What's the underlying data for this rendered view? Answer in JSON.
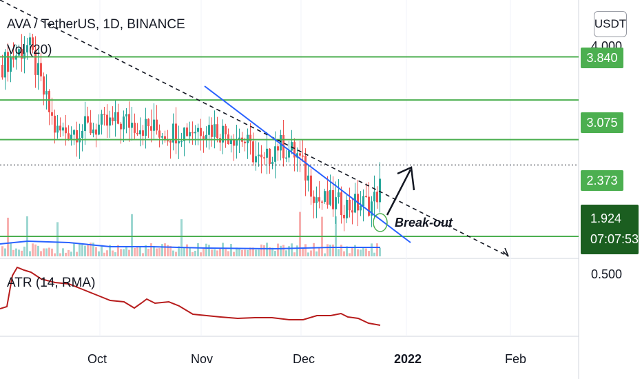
{
  "header": {
    "title": "AVA / TetherUS, 1D, BINANCE",
    "volume_label": "Vol (20)",
    "atr_label": "ATR (14, RMA)"
  },
  "toolbar": {
    "currency_button": "USDT"
  },
  "price_axis": {
    "top_partial_label": "4.000",
    "lower_label": "0.500"
  },
  "levels": [
    {
      "label": "3.840",
      "value": 3.84
    },
    {
      "label": "3.075",
      "value": 3.075
    },
    {
      "label": "2.373",
      "value": 2.373
    },
    {
      "label": "1.924",
      "value": 1.924
    }
  ],
  "current_price": {
    "price": "1.924",
    "countdown": "07:07:53"
  },
  "annotation": {
    "text": "Break-out"
  },
  "time_axis": [
    {
      "label": "Oct",
      "bold": false
    },
    {
      "label": "Nov",
      "bold": false
    },
    {
      "label": "Dec",
      "bold": false
    },
    {
      "label": "2022",
      "bold": true
    },
    {
      "label": "Feb",
      "bold": false
    }
  ],
  "colors": {
    "up": "#26a69a",
    "down": "#ef5350",
    "level_line": "#4caf50",
    "trend_line": "#2962ff",
    "dashed_line": "#131722",
    "atr_line": "#b71c1c",
    "vol_ma": "#2962ff",
    "price_badge": "#1b5e20"
  },
  "chart_data": {
    "type": "candlestick",
    "title": "AVA / TetherUS, 1D, BINANCE",
    "x": [
      "Oct",
      "Nov",
      "Dec",
      "2022",
      "Feb"
    ],
    "y_unit": "USDT",
    "horizontal_levels": [
      3.84,
      3.075,
      2.373,
      1.924
    ],
    "series": [
      {
        "name": "Vol (20)",
        "type": "bar"
      },
      {
        "name": "ATR (14, RMA)",
        "type": "line"
      }
    ],
    "annotations": [
      "Break-out"
    ]
  }
}
